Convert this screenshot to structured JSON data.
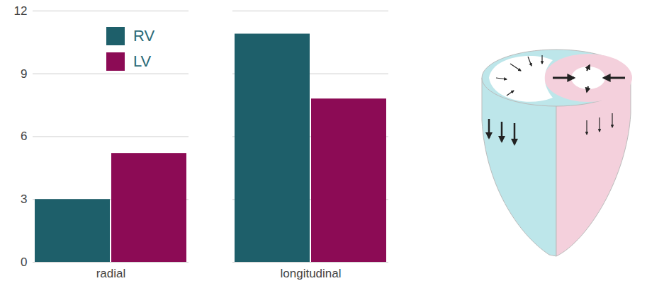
{
  "chart_data": {
    "type": "bar",
    "categories": [
      "radial",
      "longitudinal"
    ],
    "series": [
      {
        "name": "RV",
        "color": "#1e5f6a",
        "values": [
          3.0,
          10.9
        ]
      },
      {
        "name": "LV",
        "color": "#8c0b55",
        "values": [
          5.2,
          7.8
        ]
      }
    ],
    "ylim": [
      0,
      12
    ],
    "yticks": [
      0,
      3,
      6,
      9,
      12
    ],
    "grid": true,
    "legend": "top-left"
  }
}
